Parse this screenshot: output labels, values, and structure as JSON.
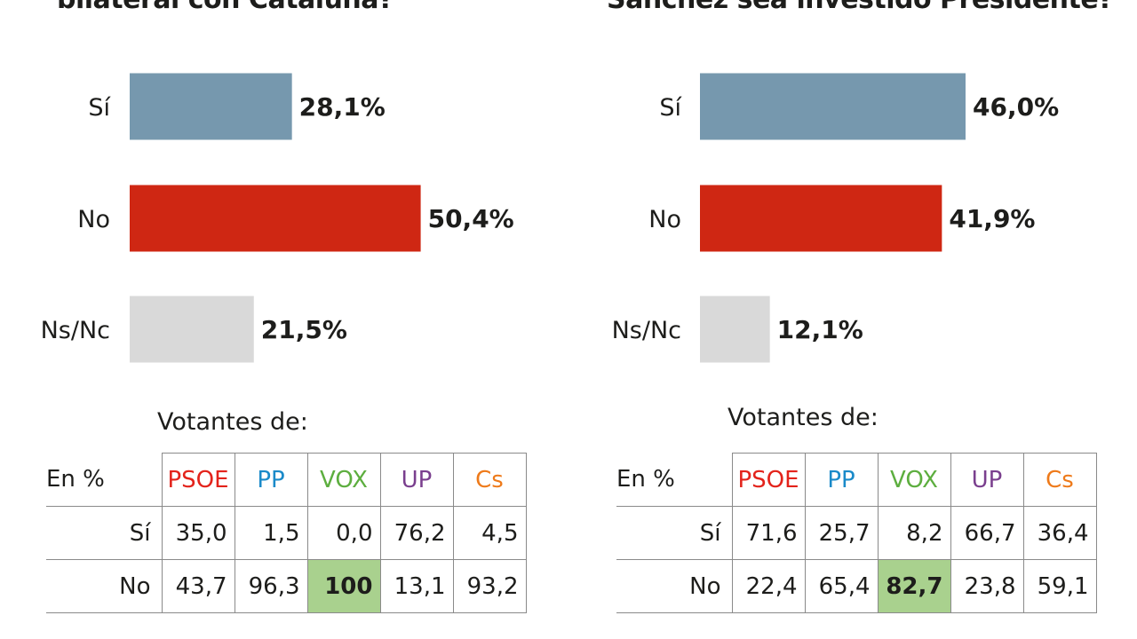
{
  "colors": {
    "si": "#7698ae",
    "no": "#cf2713",
    "nsnc": "#d9d9d9",
    "highlight": "#a9d18e",
    "PSOE": "#e3231b",
    "PP": "#1a8ac9",
    "VOX": "#5dae3f",
    "UP": "#7a3f8e",
    "Cs": "#ee7a1a"
  },
  "chart_data": [
    {
      "type": "bar",
      "title": "bilateral con Cataluña?",
      "categories": [
        "Sí",
        "No",
        "Ns/Nc"
      ],
      "values": [
        28.1,
        50.4,
        21.5
      ],
      "value_labels": [
        "28,1%",
        "50,4%",
        "21,5%"
      ],
      "unit": "%",
      "orientation": "horizontal",
      "xlim": [
        0,
        100
      ],
      "grid": false,
      "table": {
        "caption": "Votantes de:",
        "corner": "En %",
        "columns": [
          "PSOE",
          "PP",
          "VOX",
          "UP",
          "Cs"
        ],
        "rows": [
          {
            "label": "Sí",
            "values": [
              "35,0",
              "1,5",
              "0,0",
              "76,2",
              "4,5"
            ]
          },
          {
            "label": "No",
            "values": [
              "43,7",
              "96,3",
              "100",
              "13,1",
              "93,2"
            ]
          }
        ],
        "highlight": {
          "row": 1,
          "col": 2
        }
      }
    },
    {
      "type": "bar",
      "title": "Sánchez sea investido Presidente?",
      "categories": [
        "Sí",
        "No",
        "Ns/Nc"
      ],
      "values": [
        46.0,
        41.9,
        12.1
      ],
      "value_labels": [
        "46,0%",
        "41,9%",
        "12,1%"
      ],
      "unit": "%",
      "orientation": "horizontal",
      "xlim": [
        0,
        100
      ],
      "grid": false,
      "table": {
        "caption": "Votantes de:",
        "corner": "En %",
        "columns": [
          "PSOE",
          "PP",
          "VOX",
          "UP",
          "Cs"
        ],
        "rows": [
          {
            "label": "Sí",
            "values": [
              "71,6",
              "25,7",
              "8,2",
              "66,7",
              "36,4"
            ]
          },
          {
            "label": "No",
            "values": [
              "22,4",
              "65,4",
              "82,7",
              "23,8",
              "59,1"
            ]
          }
        ],
        "highlight": {
          "row": 1,
          "col": 2
        }
      }
    }
  ]
}
